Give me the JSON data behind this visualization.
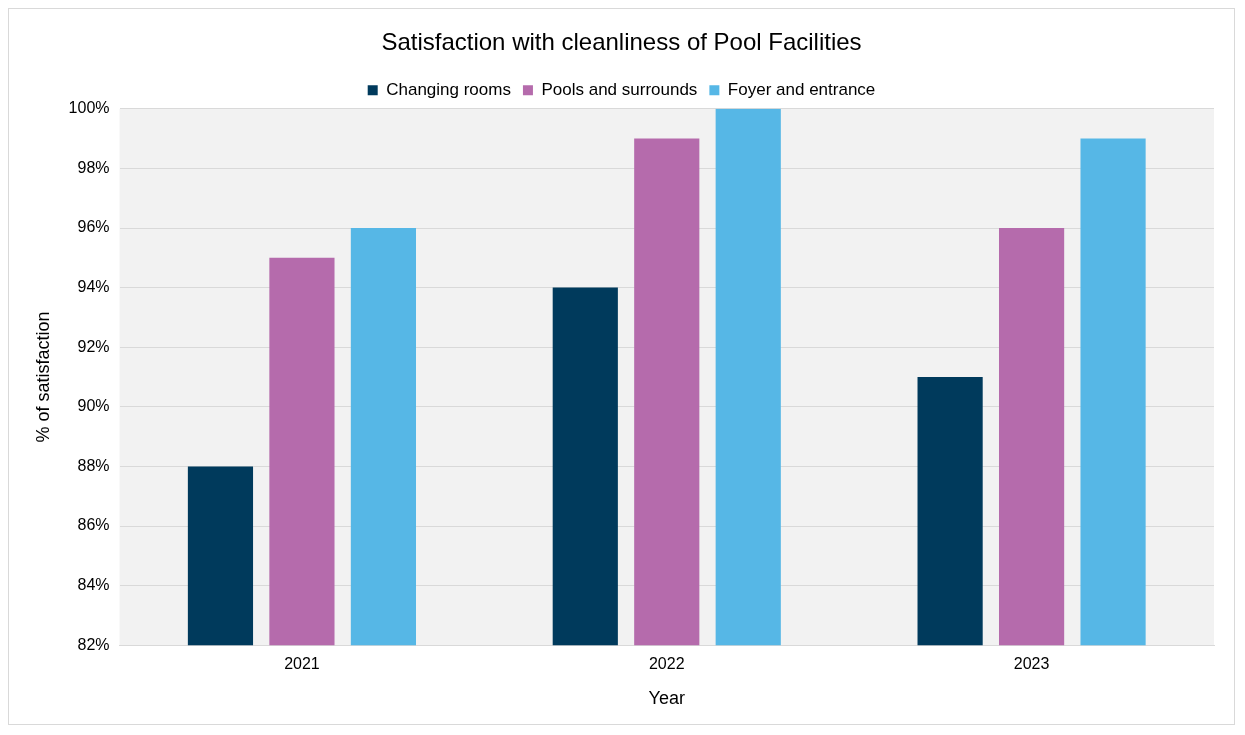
{
  "chart_data": {
    "type": "bar",
    "title": "Satisfaction with cleanliness of Pool Facilities",
    "xlabel": "Year",
    "ylabel": "% of satisfaction",
    "categories": [
      "2021",
      "2022",
      "2023"
    ],
    "series": [
      {
        "name": "Changing rooms",
        "color": "#003a5c",
        "values": [
          88,
          94,
          91
        ]
      },
      {
        "name": "Pools and surrounds",
        "color": "#b56bac",
        "values": [
          95,
          99,
          96
        ]
      },
      {
        "name": "Foyer and entrance",
        "color": "#56b7e6",
        "values": [
          96,
          100,
          99
        ]
      }
    ],
    "ylim": [
      82,
      100
    ],
    "yticks": [
      {
        "value": 82,
        "label": "82%"
      },
      {
        "value": 84,
        "label": "84%"
      },
      {
        "value": 86,
        "label": "86%"
      },
      {
        "value": 88,
        "label": "88%"
      },
      {
        "value": 90,
        "label": "90%"
      },
      {
        "value": 92,
        "label": "92%"
      },
      {
        "value": 94,
        "label": "94%"
      },
      {
        "value": 96,
        "label": "96%"
      },
      {
        "value": 98,
        "label": "98%"
      },
      {
        "value": 100,
        "label": "100%"
      }
    ],
    "grid": "y",
    "legend": "top"
  }
}
